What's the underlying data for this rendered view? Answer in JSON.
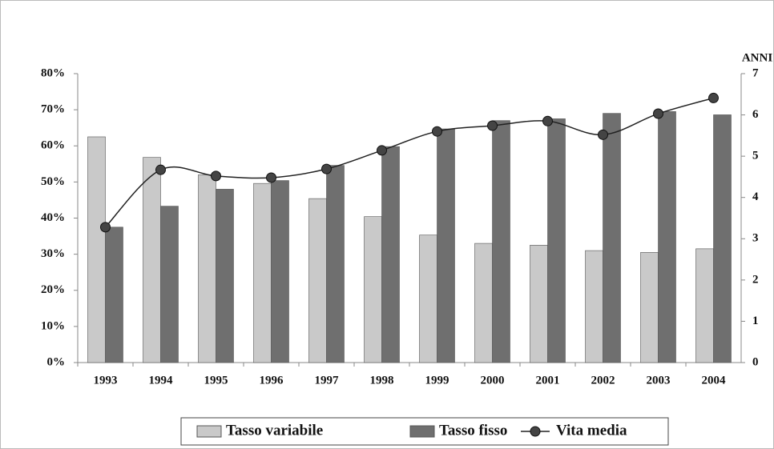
{
  "chart_data": {
    "type": "bar_line",
    "categories": [
      "1993",
      "1994",
      "1995",
      "1996",
      "1997",
      "1998",
      "1999",
      "2000",
      "2001",
      "2002",
      "2003",
      "2004"
    ],
    "series": [
      {
        "name": "Tasso variabile",
        "color": "#c9c9c9",
        "values": [
          62.5,
          56.8,
          52,
          49.6,
          45.4,
          40.4,
          35.3,
          33,
          32.5,
          31,
          30.5,
          31.5
        ]
      },
      {
        "name": "Tasso fisso",
        "color": "#6f6f6f",
        "values": [
          37.5,
          43.3,
          48,
          50.4,
          54.6,
          59.8,
          64.7,
          67,
          67.5,
          69,
          69.5,
          68.6
        ]
      },
      {
        "name": "Vita media",
        "color": "#222222",
        "axis": "y2",
        "values": [
          3.28,
          4.67,
          4.52,
          4.48,
          4.69,
          5.14,
          5.6,
          5.74,
          5.85,
          5.52,
          6.03,
          6.41
        ]
      }
    ],
    "ylim": [
      0,
      80
    ],
    "yticks": [
      {
        "value": 0,
        "label": "0%"
      },
      {
        "value": 10,
        "label": "10%"
      },
      {
        "value": 20,
        "label": "20%"
      },
      {
        "value": 30,
        "label": "30%"
      },
      {
        "value": 40,
        "label": "40%"
      },
      {
        "value": 50,
        "label": "50%"
      },
      {
        "value": 60,
        "label": "60%"
      },
      {
        "value": 70,
        "label": "70%"
      },
      {
        "value": 80,
        "label": "80%"
      }
    ],
    "y2label": "ANNI",
    "y2lim": [
      0,
      7
    ],
    "y2ticks": [
      0,
      1,
      2,
      3,
      4,
      5,
      6,
      7
    ],
    "legend": "bottom"
  }
}
